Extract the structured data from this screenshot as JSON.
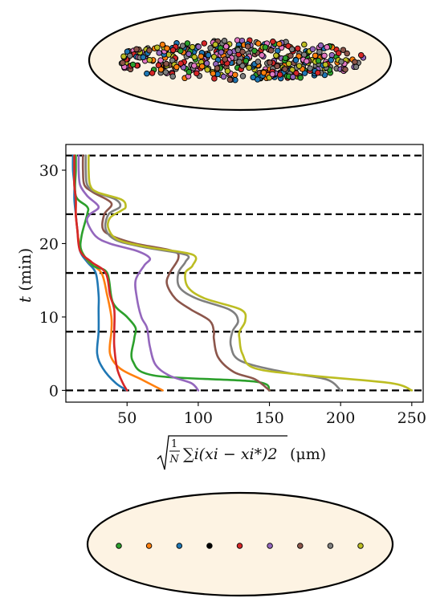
{
  "colors": {
    "cell_fill": "#fdf3e3",
    "outline": "#000000",
    "dashed_line": "#000000",
    "series_palette": [
      "#1f77b4",
      "#ff7f0e",
      "#2ca02c",
      "#d62728",
      "#9467bd",
      "#8c564b",
      "#7f7f7f",
      "#bcbd22"
    ]
  },
  "top_cell": {
    "description_type": "ellipse scattered with many small colored particles",
    "particle_colors": [
      "#1f77b4",
      "#ff7f0e",
      "#2ca02c",
      "#d62728",
      "#9467bd",
      "#8c564b",
      "#7f7f7f",
      "#bcbd22",
      "#e377c2"
    ]
  },
  "bottom_cell": {
    "dot_colors": [
      "#2ca02c",
      "#ff7f0e",
      "#1f77b4",
      "#000000",
      "#d62728",
      "#9467bd",
      "#8c564b",
      "#7f7f7f",
      "#bcbd22"
    ]
  },
  "chart_data": {
    "type": "line",
    "xlabel_sqrt_inner": "∑i(xi − xi*)2",
    "xlabel_frac_num": "1",
    "xlabel_frac_den": "N",
    "xlabel_unit": "(μm)",
    "ylabel_var": "t",
    "ylabel_unit": "(min)",
    "xlim": [
      7,
      258
    ],
    "ylim": [
      -1.6,
      33.5
    ],
    "x_ticks": [
      50,
      100,
      150,
      200,
      250
    ],
    "x_tick_labels": [
      "50",
      "100",
      "150",
      "200",
      "250"
    ],
    "y_ticks": [
      0,
      10,
      20,
      30
    ],
    "y_tick_labels": [
      "0",
      "10",
      "20",
      "30"
    ],
    "dashed_lines_t": [
      0,
      8,
      16,
      24,
      32
    ],
    "grid": false,
    "series": [
      {
        "color": "#1f77b4",
        "points": [
          [
            50,
            0
          ],
          [
            42,
            1
          ],
          [
            33,
            3
          ],
          [
            29,
            5
          ],
          [
            30,
            8
          ],
          [
            30,
            11
          ],
          [
            30,
            13
          ],
          [
            28,
            16
          ],
          [
            22,
            17.5
          ],
          [
            17,
            19
          ],
          [
            15,
            22
          ],
          [
            14,
            24
          ],
          [
            13,
            26
          ],
          [
            13,
            28
          ],
          [
            12,
            30
          ],
          [
            12,
            32
          ]
        ]
      },
      {
        "color": "#ff7f0e",
        "points": [
          [
            75,
            0
          ],
          [
            60,
            1.5
          ],
          [
            45,
            3
          ],
          [
            38,
            5
          ],
          [
            39,
            8
          ],
          [
            39,
            10
          ],
          [
            36,
            13
          ],
          [
            32,
            16
          ],
          [
            23,
            17.5
          ],
          [
            17,
            19.5
          ],
          [
            15,
            22
          ],
          [
            14,
            24
          ],
          [
            14,
            26
          ],
          [
            13,
            28
          ],
          [
            13,
            30
          ],
          [
            13,
            32
          ]
        ]
      },
      {
        "color": "#2ca02c",
        "points": [
          [
            150,
            0
          ],
          [
            140,
            1.2
          ],
          [
            70,
            2
          ],
          [
            54,
            4
          ],
          [
            55,
            7
          ],
          [
            56,
            8.5
          ],
          [
            50,
            10
          ],
          [
            40,
            12
          ],
          [
            36,
            16
          ],
          [
            26,
            17
          ],
          [
            18,
            19
          ],
          [
            18,
            21
          ],
          [
            22,
            24
          ],
          [
            22,
            25
          ],
          [
            14,
            26.5
          ],
          [
            14,
            30
          ],
          [
            14,
            32
          ]
        ]
      },
      {
        "color": "#d62728",
        "points": [
          [
            50,
            0
          ],
          [
            47,
            1
          ],
          [
            43,
            3
          ],
          [
            41,
            6
          ],
          [
            41,
            8
          ],
          [
            41,
            11
          ],
          [
            38,
            13
          ],
          [
            35,
            16
          ],
          [
            25,
            17.5
          ],
          [
            17,
            19
          ],
          [
            15,
            22
          ],
          [
            14,
            24
          ],
          [
            14,
            26
          ],
          [
            13,
            28
          ],
          [
            13,
            30
          ],
          [
            13,
            32
          ]
        ]
      },
      {
        "color": "#9467bd",
        "points": [
          [
            100,
            0
          ],
          [
            95,
            1
          ],
          [
            80,
            2
          ],
          [
            70,
            3.5
          ],
          [
            66,
            6
          ],
          [
            64,
            8.5
          ],
          [
            60,
            10
          ],
          [
            57,
            12.5
          ],
          [
            56,
            15
          ],
          [
            62,
            17
          ],
          [
            66,
            18
          ],
          [
            57,
            19
          ],
          [
            38,
            20
          ],
          [
            28,
            21
          ],
          [
            22,
            23
          ],
          [
            24,
            24
          ],
          [
            30,
            25
          ],
          [
            22,
            26.5
          ],
          [
            17,
            28
          ],
          [
            16,
            30
          ],
          [
            16,
            32
          ]
        ]
      },
      {
        "color": "#8c564b",
        "points": [
          [
            150,
            0
          ],
          [
            140,
            1.5
          ],
          [
            125,
            2.5
          ],
          [
            114,
            4.5
          ],
          [
            111,
            7
          ],
          [
            111,
            8
          ],
          [
            108,
            9.5
          ],
          [
            95,
            11
          ],
          [
            84,
            12.5
          ],
          [
            78,
            14.5
          ],
          [
            80,
            16
          ],
          [
            86,
            18
          ],
          [
            82,
            19
          ],
          [
            56,
            20
          ],
          [
            40,
            21
          ],
          [
            33,
            22
          ],
          [
            34,
            24
          ],
          [
            39,
            25.5
          ],
          [
            26,
            27
          ],
          [
            20,
            28
          ],
          [
            19,
            30
          ],
          [
            19,
            32
          ]
        ]
      },
      {
        "color": "#7f7f7f",
        "points": [
          [
            200,
            0
          ],
          [
            190,
            1.5
          ],
          [
            160,
            2.5
          ],
          [
            130,
            4
          ],
          [
            123,
            6
          ],
          [
            124,
            8
          ],
          [
            128,
            9.5
          ],
          [
            122,
            11
          ],
          [
            99,
            12.5
          ],
          [
            87,
            14
          ],
          [
            86,
            16
          ],
          [
            91,
            17.5
          ],
          [
            91,
            18.5
          ],
          [
            62,
            19.5
          ],
          [
            42,
            20.5
          ],
          [
            35,
            22
          ],
          [
            37,
            24
          ],
          [
            45,
            25
          ],
          [
            42,
            26
          ],
          [
            28,
            27
          ],
          [
            22,
            28
          ],
          [
            21,
            30
          ],
          [
            21,
            32
          ]
        ]
      },
      {
        "color": "#bcbd22",
        "points": [
          [
            250,
            0
          ],
          [
            235,
            1
          ],
          [
            180,
            2
          ],
          [
            140,
            3
          ],
          [
            131,
            5
          ],
          [
            129,
            7
          ],
          [
            129,
            8
          ],
          [
            133,
            9.5
          ],
          [
            130,
            11
          ],
          [
            105,
            12.5
          ],
          [
            93,
            14
          ],
          [
            91,
            16
          ],
          [
            96,
            17
          ],
          [
            96,
            18.5
          ],
          [
            65,
            19.5
          ],
          [
            44,
            20.5
          ],
          [
            37,
            22
          ],
          [
            38,
            23.5
          ],
          [
            46,
            24.5
          ],
          [
            49,
            25
          ],
          [
            46,
            26
          ],
          [
            29,
            27
          ],
          [
            24,
            28
          ],
          [
            23,
            30
          ],
          [
            23,
            32
          ]
        ]
      }
    ]
  }
}
